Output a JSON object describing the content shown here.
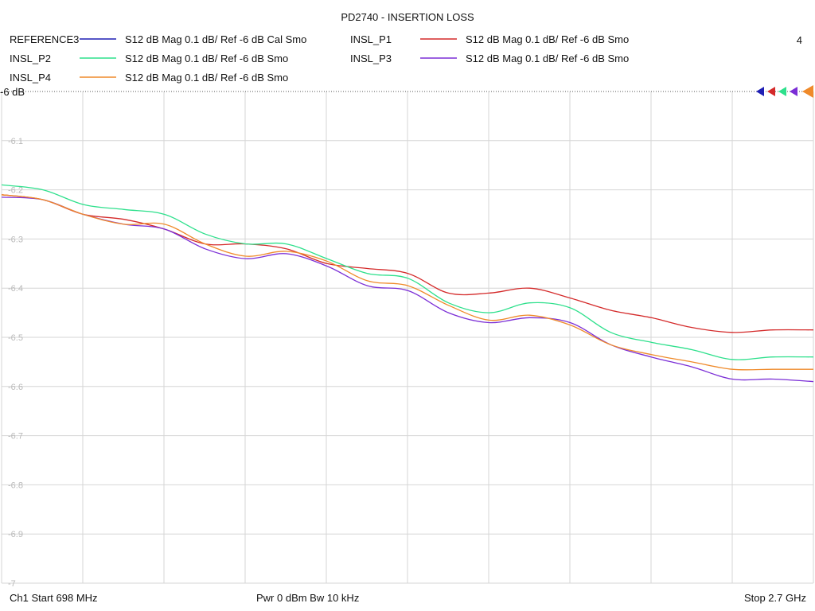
{
  "chart_data": {
    "type": "line",
    "title": "PD2740 - INSERTION LOSS",
    "trace_number": "4",
    "ref_label": "-6 dB",
    "footer": {
      "start": "Ch1  Start  698 MHz",
      "power": "Pwr  0 dBm  Bw  10 kHz",
      "stop": "Stop  2.7 GHz"
    },
    "x_range_mhz": [
      698,
      2700
    ],
    "ylim": [
      -7.0,
      -6.0
    ],
    "y_ticks": [
      "-6.1",
      "-6.2",
      "-6.3",
      "-6.4",
      "-6.5",
      "-6.6",
      "-6.7",
      "-6.8",
      "-6.9",
      "-7"
    ],
    "y_tick_values": [
      -6.1,
      -6.2,
      -6.3,
      -6.4,
      -6.5,
      -6.6,
      -6.7,
      -6.8,
      -6.9,
      -7.0
    ],
    "x_grid_divisions": 10,
    "legend_position": "top",
    "series": [
      {
        "name": "REFERENCE3",
        "desc": "S12  dB Mag  0.1 dB/ Ref -6 dB  Cal Smo",
        "color": "#1f1fb4",
        "x": [],
        "y": []
      },
      {
        "name": "INSL_P1",
        "desc": "S12  dB Mag  0.1 dB/ Ref -6 dB  Smo",
        "color": "#d42a2a",
        "x": [
          698,
          800,
          900,
          1000,
          1100,
          1200,
          1300,
          1400,
          1500,
          1600,
          1700,
          1800,
          1900,
          2000,
          2100,
          2200,
          2300,
          2400,
          2500,
          2600,
          2700
        ],
        "y": [
          -6.21,
          -6.22,
          -6.25,
          -6.26,
          -6.28,
          -6.31,
          -6.31,
          -6.32,
          -6.35,
          -6.36,
          -6.37,
          -6.41,
          -6.41,
          -6.4,
          -6.42,
          -6.445,
          -6.46,
          -6.48,
          -6.49,
          -6.485,
          -6.485
        ]
      },
      {
        "name": "INSL_P2",
        "desc": "S12  dB Mag  0.1 dB/ Ref -6 dB  Smo",
        "color": "#2ee08c",
        "x": [
          698,
          800,
          900,
          1000,
          1100,
          1200,
          1300,
          1400,
          1500,
          1600,
          1700,
          1800,
          1900,
          2000,
          2100,
          2200,
          2300,
          2400,
          2500,
          2600,
          2700
        ],
        "y": [
          -6.19,
          -6.2,
          -6.23,
          -6.24,
          -6.25,
          -6.29,
          -6.31,
          -6.31,
          -6.34,
          -6.37,
          -6.38,
          -6.43,
          -6.45,
          -6.43,
          -6.44,
          -6.49,
          -6.51,
          -6.525,
          -6.545,
          -6.54,
          -6.54
        ]
      },
      {
        "name": "INSL_P3",
        "desc": "S12  dB Mag  0.1 dB/ Ref -6 dB  Smo",
        "color": "#7b2ed6",
        "x": [
          698,
          800,
          900,
          1000,
          1100,
          1200,
          1300,
          1400,
          1500,
          1600,
          1700,
          1800,
          1900,
          2000,
          2100,
          2200,
          2300,
          2400,
          2500,
          2600,
          2700
        ],
        "y": [
          -6.215,
          -6.22,
          -6.25,
          -6.27,
          -6.28,
          -6.32,
          -6.34,
          -6.33,
          -6.355,
          -6.395,
          -6.405,
          -6.45,
          -6.47,
          -6.46,
          -6.47,
          -6.515,
          -6.54,
          -6.56,
          -6.585,
          -6.585,
          -6.59
        ]
      },
      {
        "name": "INSL_P4",
        "desc": "S12  dB Mag  0.1 dB/ Ref -6 dB  Smo",
        "color": "#ef8a2a",
        "x": [
          698,
          800,
          900,
          1000,
          1100,
          1200,
          1300,
          1400,
          1500,
          1600,
          1700,
          1800,
          1900,
          2000,
          2100,
          2200,
          2300,
          2400,
          2500,
          2600,
          2700
        ],
        "y": [
          -6.21,
          -6.22,
          -6.25,
          -6.27,
          -6.27,
          -6.31,
          -6.335,
          -6.325,
          -6.345,
          -6.385,
          -6.395,
          -6.435,
          -6.465,
          -6.455,
          -6.475,
          -6.515,
          -6.535,
          -6.55,
          -6.565,
          -6.565,
          -6.565
        ]
      }
    ]
  }
}
